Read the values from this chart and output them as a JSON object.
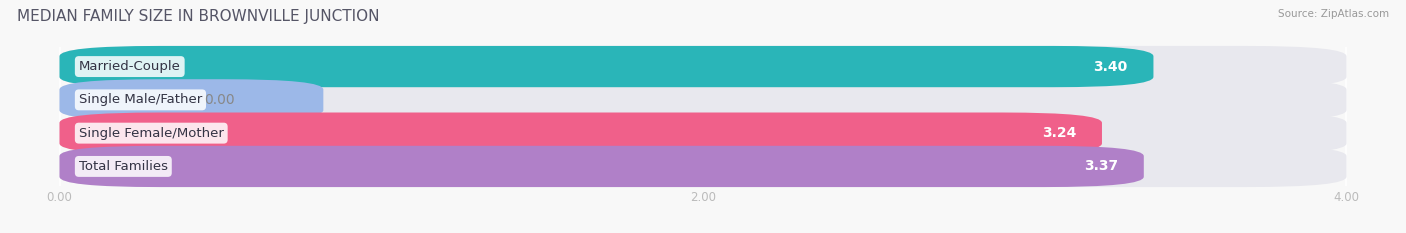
{
  "title": "MEDIAN FAMILY SIZE IN BROWNVILLE JUNCTION",
  "source": "Source: ZipAtlas.com",
  "categories": [
    "Married-Couple",
    "Single Male/Father",
    "Single Female/Mother",
    "Total Families"
  ],
  "values": [
    3.4,
    0.0,
    3.24,
    3.37
  ],
  "bar_colors": [
    "#2ab5b8",
    "#9cb8e8",
    "#f0608a",
    "#b080c8"
  ],
  "bar_bg_color": "#e8e8ee",
  "bg_color": "#f8f8f8",
  "xlim": [
    0,
    4.0
  ],
  "xticks": [
    0.0,
    2.0,
    4.0
  ],
  "xtick_labels": [
    "0.00",
    "2.00",
    "4.00"
  ],
  "title_fontsize": 11,
  "label_fontsize": 9.5,
  "value_fontsize": 10,
  "bar_height": 0.62,
  "title_color": "#555566"
}
